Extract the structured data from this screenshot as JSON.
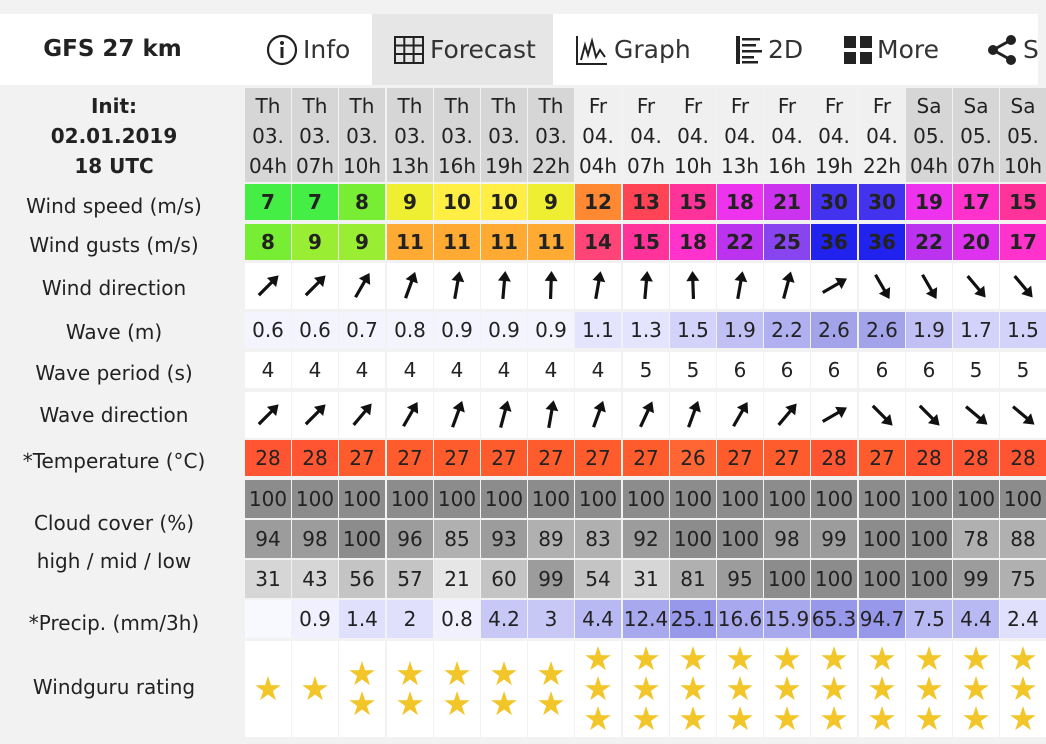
{
  "header": {
    "model": "GFS 27 km",
    "tabs": [
      {
        "label": "Info",
        "icon": "info-icon"
      },
      {
        "label": "Forecast",
        "icon": "table-icon",
        "active": true
      },
      {
        "label": "Graph",
        "icon": "graph-icon"
      },
      {
        "label": "2D",
        "icon": "bars-icon"
      },
      {
        "label": "More",
        "icon": "grid-icon"
      },
      {
        "label": "S",
        "icon": "share-icon"
      }
    ]
  },
  "labels": {
    "init": [
      "Init:",
      "02.01.2019",
      "18 UTC"
    ],
    "wind_speed": "Wind speed (m/s)",
    "wind_gusts": "Wind gusts (m/s)",
    "wind_direction": "Wind direction",
    "wave": "Wave (m)",
    "wave_period": "Wave period (s)",
    "wave_direction": "Wave direction",
    "temperature": "*Temperature (°C)",
    "cloud_cover": "Cloud cover (%)",
    "cloud_layers": "high / mid / low",
    "precip": "*Precip. (mm/3h)",
    "rating": "Windguru rating"
  },
  "columns": [
    {
      "day": "Th",
      "date": "03.",
      "hour": "04h",
      "speed": 7,
      "gust": 8,
      "wdir": 225,
      "wave": "0.6",
      "period": 4,
      "vdir": 225,
      "temp": 28,
      "high": 100,
      "mid": 94,
      "low": 31,
      "precip": "",
      "stars": 1
    },
    {
      "day": "Th",
      "date": "03.",
      "hour": "07h",
      "speed": 7,
      "gust": 9,
      "wdir": 225,
      "wave": "0.6",
      "period": 4,
      "vdir": 225,
      "temp": 28,
      "high": 100,
      "mid": 98,
      "low": 43,
      "precip": "0.9",
      "stars": 1
    },
    {
      "day": "Th",
      "date": "03.",
      "hour": "10h",
      "speed": 8,
      "gust": 9,
      "wdir": 210,
      "wave": "0.7",
      "period": 4,
      "vdir": 220,
      "temp": 27,
      "high": 100,
      "mid": 100,
      "low": 56,
      "precip": "1.4",
      "stars": 2
    },
    {
      "day": "Th",
      "date": "03.",
      "hour": "13h",
      "speed": 9,
      "gust": 11,
      "wdir": 200,
      "wave": "0.8",
      "period": 4,
      "vdir": 210,
      "temp": 27,
      "high": 100,
      "mid": 96,
      "low": 57,
      "precip": "2",
      "stars": 2
    },
    {
      "day": "Th",
      "date": "03.",
      "hour": "16h",
      "speed": 10,
      "gust": 11,
      "wdir": 190,
      "wave": "0.9",
      "period": 4,
      "vdir": 200,
      "temp": 27,
      "high": 100,
      "mid": 85,
      "low": 21,
      "precip": "0.8",
      "stars": 2
    },
    {
      "day": "Th",
      "date": "03.",
      "hour": "19h",
      "speed": 10,
      "gust": 11,
      "wdir": 185,
      "wave": "0.9",
      "period": 4,
      "vdir": 195,
      "temp": 27,
      "high": 100,
      "mid": 93,
      "low": 60,
      "precip": "4.2",
      "stars": 2
    },
    {
      "day": "Th",
      "date": "03.",
      "hour": "22h",
      "speed": 9,
      "gust": 11,
      "wdir": 182,
      "wave": "0.9",
      "period": 4,
      "vdir": 190,
      "temp": 27,
      "high": 100,
      "mid": 89,
      "low": 99,
      "precip": "3",
      "stars": 2
    },
    {
      "day": "Fr",
      "date": "04.",
      "hour": "04h",
      "speed": 12,
      "gust": 14,
      "wdir": 190,
      "wave": "1.1",
      "period": 4,
      "vdir": 200,
      "temp": 27,
      "high": 100,
      "mid": 83,
      "low": 54,
      "precip": "4.4",
      "stars": 3
    },
    {
      "day": "Fr",
      "date": "04.",
      "hour": "07h",
      "speed": 13,
      "gust": 15,
      "wdir": 185,
      "wave": "1.3",
      "period": 5,
      "vdir": 205,
      "temp": 27,
      "high": 100,
      "mid": 92,
      "low": 31,
      "precip": "12.4",
      "stars": 3
    },
    {
      "day": "Fr",
      "date": "04.",
      "hour": "10h",
      "speed": 15,
      "gust": 18,
      "wdir": 178,
      "wave": "1.5",
      "period": 5,
      "vdir": 200,
      "temp": 26,
      "high": 100,
      "mid": 100,
      "low": 81,
      "precip": "25.1",
      "stars": 3
    },
    {
      "day": "Fr",
      "date": "04.",
      "hour": "13h",
      "speed": 18,
      "gust": 22,
      "wdir": 190,
      "wave": "1.9",
      "period": 6,
      "vdir": 210,
      "temp": 27,
      "high": 100,
      "mid": 100,
      "low": 95,
      "precip": "16.6",
      "stars": 3
    },
    {
      "day": "Fr",
      "date": "04.",
      "hour": "16h",
      "speed": 21,
      "gust": 25,
      "wdir": 195,
      "wave": "2.2",
      "period": 6,
      "vdir": 220,
      "temp": 27,
      "high": 100,
      "mid": 98,
      "low": 100,
      "precip": "15.9",
      "stars": 3
    },
    {
      "day": "Fr",
      "date": "04.",
      "hour": "19h",
      "speed": 30,
      "gust": 36,
      "wdir": 240,
      "wave": "2.6",
      "period": 6,
      "vdir": 240,
      "temp": 28,
      "high": 100,
      "mid": 99,
      "low": 100,
      "precip": "65.3",
      "stars": 3
    },
    {
      "day": "Fr",
      "date": "04.",
      "hour": "22h",
      "speed": 30,
      "gust": 36,
      "wdir": 330,
      "wave": "2.6",
      "period": 6,
      "vdir": 315,
      "temp": 27,
      "high": 100,
      "mid": 100,
      "low": 100,
      "precip": "94.7",
      "stars": 3
    },
    {
      "day": "Sa",
      "date": "05.",
      "hour": "04h",
      "speed": 19,
      "gust": 22,
      "wdir": 330,
      "wave": "1.9",
      "period": 6,
      "vdir": 315,
      "temp": 28,
      "high": 100,
      "mid": 100,
      "low": 100,
      "precip": "7.5",
      "stars": 3
    },
    {
      "day": "Sa",
      "date": "05.",
      "hour": "07h",
      "speed": 17,
      "gust": 20,
      "wdir": 320,
      "wave": "1.7",
      "period": 5,
      "vdir": 310,
      "temp": 28,
      "high": 100,
      "mid": 78,
      "low": 99,
      "precip": "4.4",
      "stars": 3
    },
    {
      "day": "Sa",
      "date": "05.",
      "hour": "10h",
      "speed": 15,
      "gust": 17,
      "wdir": 320,
      "wave": "1.5",
      "period": 5,
      "vdir": 310,
      "temp": 28,
      "high": 100,
      "mid": 88,
      "low": 75,
      "precip": "2.4",
      "stars": 3
    }
  ],
  "colors": {
    "th_header": "#d6d6d6",
    "fr_header": "#f0f0f0",
    "sa_header": "#d6d6d6",
    "temp_28": "#ff5533",
    "temp_27": "#ff5c2e",
    "temp_26": "#ff6633",
    "star": "#f2c529"
  }
}
